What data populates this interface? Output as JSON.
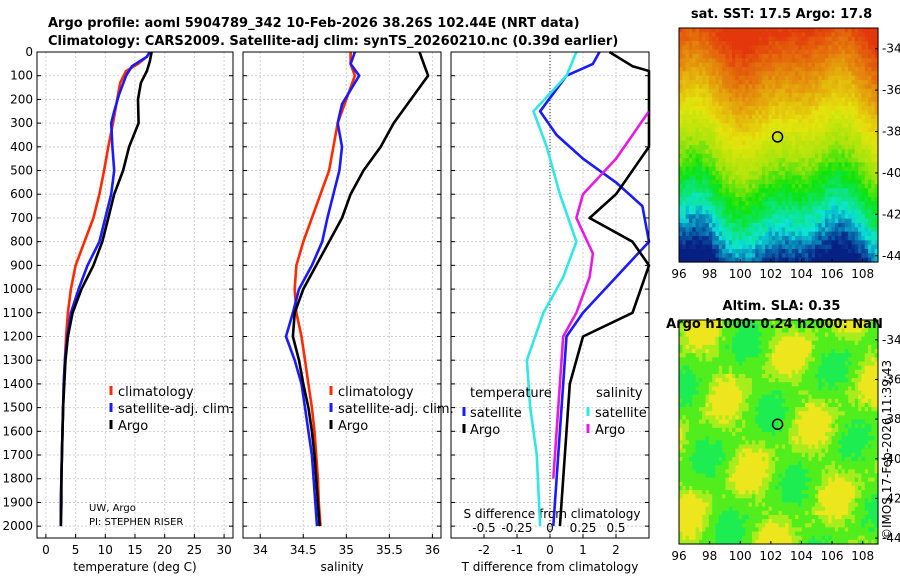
{
  "header": {
    "title_line1": "Argo profile: aoml 5904789_342 10-Feb-2026 38.26S 102.44E (NRT data)",
    "title_line2": "Climatology: CARS2009. Satellite-adj clim: synTS_20260210.nc (0.39d earlier)"
  },
  "credit": {
    "line1": "UW, Argo",
    "line2": "PI: STEPHEN RISER"
  },
  "watermark": "©IMOS 17-Feb-2026 11:39:43",
  "colors": {
    "climatology": "#ff2a00",
    "satellite": "#1a1aff",
    "argo": "#000000",
    "sat_s": "#33e6e6",
    "argo_s": "#e61ae6"
  },
  "chart_data": [
    {
      "type": "line",
      "id": "temperature",
      "xlabel": "temperature (deg C)",
      "xlim": [
        -1.5,
        31.5
      ],
      "ylim": [
        2050,
        0
      ],
      "xticks": [
        0,
        5,
        10,
        15,
        20,
        25,
        30
      ],
      "xticklabels": [
        "0",
        "5",
        "10",
        "15",
        "20",
        "25",
        "30"
      ],
      "yticks": [
        0,
        100,
        200,
        300,
        400,
        500,
        600,
        700,
        800,
        900,
        1000,
        1100,
        1200,
        1300,
        1400,
        1500,
        1600,
        1700,
        1800,
        1900,
        2000
      ],
      "yticklabels": [
        "0",
        "100",
        "200",
        "300",
        "400",
        "500",
        "600",
        "700",
        "800",
        "900",
        "1000",
        "1100",
        "1200",
        "1300",
        "1400",
        "1500",
        "1600",
        "1700",
        "1800",
        "1900",
        "2000"
      ],
      "legend": [
        "climatology",
        "satellite-adj. clim.",
        "Argo"
      ],
      "series": [
        {
          "name": "climatology",
          "points": [
            [
              17.5,
              0
            ],
            [
              17,
              20
            ],
            [
              15.5,
              50
            ],
            [
              13.5,
              80
            ],
            [
              12.5,
              130
            ],
            [
              12,
              200
            ],
            [
              11.3,
              300
            ],
            [
              10.5,
              400
            ],
            [
              9.8,
              500
            ],
            [
              9,
              600
            ],
            [
              8,
              700
            ],
            [
              6.5,
              800
            ],
            [
              5,
              900
            ],
            [
              4.2,
              1000
            ],
            [
              3.7,
              1100
            ],
            [
              3.4,
              1200
            ],
            [
              3.2,
              1300
            ],
            [
              3,
              1400
            ],
            [
              2.9,
              1500
            ],
            [
              2.8,
              1600
            ],
            [
              2.7,
              1700
            ],
            [
              2.6,
              1800
            ],
            [
              2.5,
              1900
            ],
            [
              2.5,
              2000
            ]
          ]
        },
        {
          "name": "satellite-adj. clim.",
          "points": [
            [
              17.5,
              0
            ],
            [
              17,
              20
            ],
            [
              14.5,
              60
            ],
            [
              13.5,
              100
            ],
            [
              12.3,
              180
            ],
            [
              11.5,
              250
            ],
            [
              11,
              300
            ],
            [
              11.2,
              400
            ],
            [
              11.5,
              500
            ],
            [
              11,
              600
            ],
            [
              10,
              700
            ],
            [
              9,
              800
            ],
            [
              7,
              900
            ],
            [
              5.5,
              1000
            ],
            [
              4.2,
              1100
            ],
            [
              3.6,
              1200
            ],
            [
              3.2,
              1300
            ],
            [
              3,
              1400
            ],
            [
              2.9,
              1500
            ],
            [
              2.8,
              1600
            ],
            [
              2.7,
              1700
            ],
            [
              2.6,
              1800
            ],
            [
              2.5,
              1900
            ],
            [
              2.5,
              2000
            ]
          ]
        },
        {
          "name": "Argo",
          "points": [
            [
              17.8,
              0
            ],
            [
              17.5,
              40
            ],
            [
              17,
              80
            ],
            [
              16,
              130
            ],
            [
              15.5,
              200
            ],
            [
              15.6,
              300
            ],
            [
              14,
              400
            ],
            [
              13,
              500
            ],
            [
              11.5,
              600
            ],
            [
              10.5,
              700
            ],
            [
              9.5,
              800
            ],
            [
              8,
              900
            ],
            [
              6,
              1000
            ],
            [
              4.5,
              1100
            ],
            [
              3.7,
              1200
            ],
            [
              3.3,
              1300
            ],
            [
              3.1,
              1400
            ],
            [
              2.9,
              1500
            ],
            [
              2.8,
              1600
            ],
            [
              2.7,
              1700
            ],
            [
              2.6,
              1800
            ],
            [
              2.6,
              1900
            ],
            [
              2.5,
              2000
            ]
          ]
        }
      ]
    },
    {
      "type": "line",
      "id": "salinity",
      "xlabel": "salinity",
      "xlim": [
        33.8,
        36.1
      ],
      "ylim": [
        2050,
        0
      ],
      "xticks": [
        34,
        34.5,
        35,
        35.5,
        36
      ],
      "xticklabels": [
        "34",
        "34.5",
        "35",
        "35.5",
        "36"
      ],
      "legend": [
        "climatology",
        "satellite-adj. clim.",
        "Argo"
      ],
      "series": [
        {
          "name": "climatology",
          "points": [
            [
              35.05,
              0
            ],
            [
              35.05,
              50
            ],
            [
              35.1,
              100
            ],
            [
              35,
              200
            ],
            [
              34.9,
              300
            ],
            [
              34.85,
              400
            ],
            [
              34.8,
              500
            ],
            [
              34.7,
              600
            ],
            [
              34.6,
              700
            ],
            [
              34.5,
              800
            ],
            [
              34.42,
              900
            ],
            [
              34.4,
              1000
            ],
            [
              34.42,
              1100
            ],
            [
              34.48,
              1200
            ],
            [
              34.52,
              1300
            ],
            [
              34.56,
              1400
            ],
            [
              34.6,
              1500
            ],
            [
              34.63,
              1600
            ],
            [
              34.65,
              1700
            ],
            [
              34.67,
              1800
            ],
            [
              34.68,
              1900
            ],
            [
              34.7,
              2000
            ]
          ]
        },
        {
          "name": "satellite-adj. clim.",
          "points": [
            [
              35.1,
              0
            ],
            [
              35.05,
              50
            ],
            [
              35.15,
              100
            ],
            [
              34.95,
              220
            ],
            [
              34.9,
              300
            ],
            [
              34.95,
              400
            ],
            [
              34.92,
              500
            ],
            [
              34.85,
              600
            ],
            [
              34.78,
              700
            ],
            [
              34.72,
              800
            ],
            [
              34.6,
              900
            ],
            [
              34.45,
              1000
            ],
            [
              34.38,
              1100
            ],
            [
              34.3,
              1200
            ],
            [
              34.4,
              1300
            ],
            [
              34.48,
              1400
            ],
            [
              34.52,
              1500
            ],
            [
              34.56,
              1600
            ],
            [
              34.6,
              1700
            ],
            [
              34.62,
              1800
            ],
            [
              34.64,
              1900
            ],
            [
              34.66,
              2000
            ]
          ]
        },
        {
          "name": "Argo",
          "points": [
            [
              35.85,
              0
            ],
            [
              35.9,
              50
            ],
            [
              35.95,
              100
            ],
            [
              35.75,
              200
            ],
            [
              35.55,
              300
            ],
            [
              35.4,
              400
            ],
            [
              35.2,
              500
            ],
            [
              35.05,
              600
            ],
            [
              34.95,
              700
            ],
            [
              34.8,
              800
            ],
            [
              34.65,
              900
            ],
            [
              34.5,
              1000
            ],
            [
              34.4,
              1100
            ],
            [
              34.38,
              1200
            ],
            [
              34.45,
              1300
            ],
            [
              34.5,
              1400
            ],
            [
              34.56,
              1500
            ],
            [
              34.6,
              1600
            ],
            [
              34.63,
              1700
            ],
            [
              34.65,
              1800
            ],
            [
              34.67,
              1900
            ],
            [
              34.69,
              2000
            ]
          ]
        }
      ]
    },
    {
      "type": "line",
      "id": "difference",
      "xlabel": "T difference from climatology",
      "xlabel_top": "S difference from climatology",
      "xlim": [
        -3,
        3
      ],
      "ylim": [
        2050,
        0
      ],
      "xticks": [
        -2,
        -1,
        0,
        1,
        2
      ],
      "xticklabels": [
        "-2",
        "-1",
        "0",
        "1",
        "2"
      ],
      "sticklabels": [
        "-0.5",
        "-0.25",
        "0",
        "0.25",
        "0.5"
      ],
      "legend_left_title": "temperature",
      "legend_right_title": "salinity",
      "legend_left": [
        "satellite",
        "Argo"
      ],
      "legend_right": [
        "satellite",
        "Argo"
      ],
      "series": [
        {
          "name": "T satellite",
          "points": [
            [
              1.5,
              0
            ],
            [
              1.3,
              50
            ],
            [
              0.5,
              100
            ],
            [
              -0.3,
              250
            ],
            [
              0.2,
              350
            ],
            [
              1,
              450
            ],
            [
              2,
              550
            ],
            [
              2.8,
              650
            ],
            [
              3,
              800
            ],
            [
              2,
              950
            ],
            [
              1,
              1100
            ],
            [
              0.5,
              1200
            ],
            [
              0.4,
              1400
            ],
            [
              0.3,
              1600
            ],
            [
              0.2,
              1800
            ],
            [
              0.1,
              2000
            ]
          ]
        },
        {
          "name": "T Argo",
          "points": [
            [
              1.8,
              0
            ],
            [
              2.5,
              60
            ],
            [
              3,
              80
            ],
            [
              3,
              400
            ],
            [
              2,
              600
            ],
            [
              1.2,
              700
            ],
            [
              2.5,
              800
            ],
            [
              3,
              900
            ],
            [
              2.5,
              1100
            ],
            [
              1,
              1200
            ],
            [
              0.6,
              1400
            ],
            [
              0.5,
              1600
            ],
            [
              0.4,
              1800
            ],
            [
              0.3,
              2000
            ]
          ]
        },
        {
          "name": "S satellite",
          "points": [
            [
              0.8,
              0
            ],
            [
              0.5,
              100
            ],
            [
              -0.5,
              250
            ],
            [
              -0.1,
              400
            ],
            [
              0.3,
              600
            ],
            [
              0.8,
              800
            ],
            [
              0.4,
              950
            ],
            [
              -0.2,
              1100
            ],
            [
              -0.7,
              1300
            ],
            [
              -0.6,
              1500
            ],
            [
              -0.4,
              1700
            ],
            [
              -0.3,
              2000
            ]
          ]
        },
        {
          "name": "S Argo",
          "points": [
            [
              3,
              250
            ],
            [
              2,
              450
            ],
            [
              1,
              600
            ],
            [
              0.8,
              700
            ],
            [
              1.3,
              850
            ],
            [
              1.2,
              950
            ],
            [
              0.8,
              1100
            ],
            [
              0.4,
              1200
            ],
            [
              0.3,
              1400
            ],
            [
              0.2,
              1600
            ],
            [
              0.1,
              1800
            ]
          ]
        }
      ]
    },
    {
      "type": "heatmap",
      "id": "sst",
      "title": "sat. SST: 17.5  Argo: 17.8",
      "xlim": [
        96,
        109
      ],
      "ylim": [
        -44.3,
        -33
      ],
      "xticks": [
        96,
        98,
        100,
        102,
        104,
        106,
        108
      ],
      "xticklabels": [
        "96",
        "98",
        "100",
        "102",
        "104",
        "106",
        "108"
      ],
      "yticks": [
        -34,
        -36,
        -38,
        -40,
        -42,
        -44
      ],
      "yticklabels": [
        "-34",
        "-36",
        "-38",
        "-40",
        "-42",
        "-44"
      ],
      "marker": [
        102.44,
        -38.26
      ]
    },
    {
      "type": "heatmap",
      "id": "sla",
      "title": "Altim. SLA: 0.35",
      "subtitle": "Argo h1000: 0.24 h2000: NaN",
      "xlim": [
        96,
        109
      ],
      "ylim": [
        -44.3,
        -33
      ],
      "xticks": [
        96,
        98,
        100,
        102,
        104,
        106,
        108
      ],
      "xticklabels": [
        "96",
        "98",
        "100",
        "102",
        "104",
        "106",
        "108"
      ],
      "yticks": [
        -34,
        -36,
        -38,
        -40,
        -42,
        -44
      ],
      "yticklabels": [
        "-34",
        "-36",
        "-38",
        "-40",
        "-42",
        "-44"
      ],
      "marker": [
        102.44,
        -38.26
      ]
    }
  ]
}
